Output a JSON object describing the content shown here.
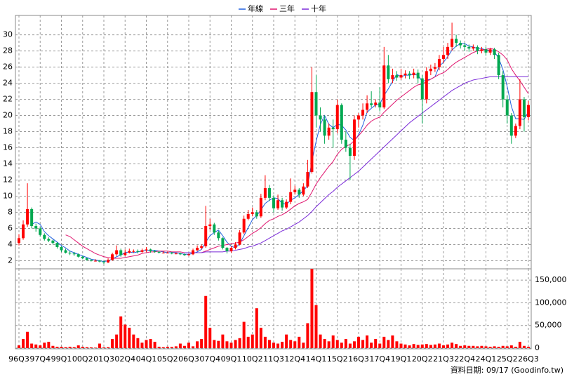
{
  "chart_data": {
    "type": "candlestick",
    "footnote": "資料日期: 09/17 (Goodinfo.tw)",
    "up_color": "#ff0000",
    "down_color": "#00a850",
    "grid": true,
    "categories": [
      "96Q3",
      null,
      null,
      null,
      null,
      "97Q4",
      null,
      null,
      null,
      null,
      "99Q1",
      null,
      null,
      null,
      null,
      "00Q2",
      null,
      null,
      null,
      null,
      "01Q3",
      null,
      null,
      null,
      null,
      "02Q4",
      null,
      null,
      null,
      null,
      "04Q1",
      null,
      null,
      null,
      null,
      "05Q2",
      null,
      null,
      null,
      null,
      "06Q3",
      null,
      null,
      null,
      null,
      "07Q4",
      null,
      null,
      null,
      null,
      "09Q1",
      null,
      null,
      null,
      null,
      "10Q2",
      null,
      null,
      null,
      null,
      "11Q3",
      null,
      null,
      null,
      null,
      "12Q4",
      null,
      null,
      null,
      null,
      "14Q1",
      null,
      null,
      null,
      null,
      "15Q2",
      null,
      null,
      null,
      null,
      "16Q3",
      null,
      null,
      null,
      null,
      "17Q4",
      null,
      null,
      null,
      null,
      "19Q1",
      null,
      null,
      null,
      null,
      "20Q2",
      null,
      null,
      null,
      null,
      "21Q3",
      null,
      null,
      null,
      null,
      "22Q4",
      null,
      null,
      null,
      null,
      "24Q1",
      null,
      null,
      null,
      null,
      "25Q2",
      null,
      null,
      null,
      null,
      "26Q3"
    ],
    "open": [
      4.2,
      4.8,
      6.5,
      8.4,
      6.3,
      6.0,
      5.2,
      4.7,
      4.5,
      4.2,
      3.7,
      3.3,
      3.0,
      2.9,
      2.8,
      2.5,
      2.3,
      2.1,
      2.0,
      2.0,
      1.9,
      1.8,
      2.1,
      2.8,
      3.3,
      2.7,
      3.0,
      3.2,
      3.2,
      3.1,
      3.3,
      3.4,
      3.2,
      3.1,
      3.0,
      3.0,
      3.0,
      2.9,
      2.9,
      2.8,
      2.7,
      2.8,
      3.3,
      3.6,
      3.8,
      6.3,
      6.5,
      5.5,
      4.8,
      3.6,
      3.2,
      3.6,
      4.0,
      5.5,
      7.2,
      7.8,
      8.0,
      7.5,
      9.8,
      11.0,
      9.8,
      8.5,
      9.5,
      8.6,
      9.3,
      10.5,
      10.8,
      10.2,
      11.2,
      13.0,
      22.9,
      20.0,
      19.5,
      17.5,
      18.5,
      18.3,
      21.3,
      17.0,
      16.0,
      15.0,
      19.5,
      20.0,
      20.7,
      21.5,
      21.3,
      21.6,
      21.0,
      26.2,
      24.5,
      25.0,
      24.7,
      25.0,
      25.2,
      25.0,
      25.3,
      24.6,
      22.0,
      25.5,
      25.8,
      26.0,
      27.0,
      27.5,
      28.5,
      29.5,
      29.0,
      28.7,
      28.5,
      28.3,
      28.5,
      28.0,
      28.2,
      27.8,
      28.2,
      27.5,
      25.0,
      22.0,
      20.0,
      17.5,
      18.7,
      22.0,
      19.8
    ],
    "high": [
      5.3,
      7,
      11.6,
      8.6,
      6.6,
      6.2,
      5.4,
      4.9,
      4.6,
      4.3,
      3.8,
      3.5,
      3.2,
      3.1,
      2.9,
      2.6,
      2.4,
      2.2,
      2.2,
      2.1,
      2.0,
      2.3,
      3.0,
      3.9,
      3.5,
      3.4,
      3.5,
      3.4,
      3.4,
      3.5,
      3.7,
      3.5,
      3.3,
      3.2,
      3.2,
      3.1,
      3.1,
      3.0,
      3.0,
      2.9,
      2.9,
      3.5,
      3.9,
      4.0,
      8.8,
      7.2,
      6.7,
      5.7,
      4.9,
      3.7,
      3.8,
      4.3,
      5.8,
      7.6,
      8.3,
      8.6,
      8.3,
      10.3,
      12.6,
      11.4,
      10.1,
      10.2,
      9.8,
      9.6,
      12.2,
      11.3,
      11.0,
      11.6,
      14.5,
      26.0,
      25.0,
      21.0,
      20.0,
      19.0,
      19.5,
      22.0,
      21.5,
      18.0,
      16.5,
      20.0,
      20.3,
      21.5,
      22.5,
      23.0,
      22.0,
      23.5,
      28.5,
      27.5,
      25.8,
      25.5,
      25.8,
      25.6,
      25.5,
      25.8,
      25.7,
      25.0,
      26.0,
      26.3,
      26.5,
      27.5,
      28.5,
      29.0,
      31.5,
      30.0,
      29.3,
      29.0,
      28.8,
      28.8,
      28.7,
      28.5,
      28.5,
      28.4,
      28.4,
      27.8,
      25.5,
      22.5,
      20.3,
      19.0,
      24.5,
      22.3,
      21.8
    ],
    "low": [
      3.9,
      4.6,
      6.2,
      6.0,
      5.6,
      5.0,
      4.5,
      4.3,
      4.0,
      3.5,
      3.1,
      2.9,
      2.7,
      2.6,
      2.4,
      2.2,
      2.0,
      1.9,
      1.9,
      1.8,
      1.6,
      1.7,
      2.0,
      2.6,
      2.5,
      2.6,
      2.9,
      3.0,
      2.9,
      3.0,
      3.1,
      3.0,
      3.0,
      2.9,
      2.9,
      2.9,
      2.8,
      2.8,
      2.7,
      2.6,
      2.6,
      2.7,
      3.2,
      3.4,
      3.6,
      5.8,
      5.2,
      4.5,
      3.4,
      2.9,
      3.0,
      3.4,
      3.9,
      5.3,
      7.0,
      7.5,
      7.2,
      7.3,
      9.5,
      9.4,
      8.0,
      8.3,
      8.2,
      8.4,
      9.0,
      10.2,
      9.8,
      10.0,
      11.0,
      12.8,
      18.5,
      18.0,
      16.5,
      17.0,
      16.0,
      17.8,
      16.5,
      15.5,
      12.0,
      14.5,
      18.5,
      19.5,
      20.3,
      21.0,
      21.0,
      20.5,
      20.8,
      24.0,
      24.0,
      24.3,
      24.4,
      24.6,
      24.5,
      24.6,
      24.0,
      19.0,
      21.5,
      25.0,
      25.4,
      25.6,
      26.5,
      27.0,
      28.0,
      28.5,
      28.3,
      28.0,
      27.9,
      28.0,
      27.6,
      27.7,
      27.4,
      27.5,
      27.0,
      24.5,
      21.0,
      19.0,
      16.5,
      17.2,
      18.3,
      18.0,
      19.4
    ],
    "close": [
      4.8,
      6.5,
      8.4,
      6.3,
      6.0,
      5.2,
      4.7,
      4.5,
      4.2,
      3.7,
      3.3,
      3.0,
      2.9,
      2.8,
      2.5,
      2.3,
      2.1,
      2.0,
      2.0,
      1.9,
      1.8,
      2.1,
      2.8,
      3.3,
      2.7,
      3.0,
      3.2,
      3.2,
      3.1,
      3.3,
      3.4,
      3.2,
      3.1,
      3.0,
      3.0,
      3.0,
      2.9,
      2.9,
      2.8,
      2.7,
      2.8,
      3.3,
      3.6,
      3.8,
      6.3,
      6.5,
      5.5,
      4.8,
      3.6,
      3.2,
      3.6,
      4.0,
      5.5,
      7.2,
      7.8,
      8.0,
      7.5,
      9.8,
      11.0,
      9.8,
      8.5,
      9.5,
      8.6,
      9.3,
      10.5,
      10.8,
      10.2,
      11.2,
      13.0,
      22.9,
      20.0,
      19.5,
      17.5,
      18.5,
      18.3,
      21.3,
      17.0,
      16.0,
      15.0,
      19.5,
      20.0,
      20.7,
      21.5,
      21.3,
      21.6,
      21.0,
      26.2,
      24.5,
      25.0,
      24.7,
      25.0,
      25.2,
      25.0,
      25.3,
      24.6,
      22.0,
      25.5,
      25.8,
      26.0,
      27.0,
      27.5,
      28.5,
      29.5,
      29.0,
      28.7,
      28.5,
      28.3,
      28.5,
      28.0,
      28.2,
      27.8,
      28.2,
      27.5,
      25.0,
      22.0,
      20.0,
      17.5,
      18.7,
      22.0,
      19.8,
      21.3
    ],
    "ylim": [
      1,
      32.4
    ],
    "yticks": [
      2,
      4,
      6,
      8,
      10,
      12,
      14,
      16,
      18,
      20,
      22,
      24,
      26,
      28,
      30
    ],
    "series": [
      {
        "name": "年線",
        "color": "#1f5fe0",
        "values": [
          null,
          null,
          null,
          6.5,
          6.8,
          6.5,
          5.6,
          5.1,
          4.7,
          4.3,
          3.9,
          3.6,
          3.2,
          3.0,
          2.8,
          2.6,
          2.4,
          2.2,
          2.1,
          2.0,
          1.9,
          2.0,
          2.2,
          2.5,
          2.7,
          3.0,
          3.1,
          3.0,
          3.1,
          3.2,
          3.3,
          3.3,
          3.3,
          3.2,
          3.1,
          3.0,
          3.0,
          3.0,
          2.9,
          2.8,
          2.8,
          2.9,
          3.1,
          3.4,
          4.3,
          5.1,
          5.5,
          5.8,
          5.1,
          4.3,
          3.8,
          3.6,
          4.1,
          5.1,
          6.1,
          7.1,
          7.6,
          8.3,
          9.1,
          9.5,
          9.8,
          9.7,
          9.1,
          9.0,
          9.5,
          9.8,
          10.2,
          10.7,
          11.3,
          14.3,
          16.8,
          18.9,
          20.0,
          18.9,
          18.5,
          18.9,
          18.8,
          18.2,
          17.3,
          16.9,
          17.6,
          18.8,
          20.4,
          20.9,
          21.3,
          21.4,
          22.5,
          23.3,
          24.2,
          25.1,
          24.8,
          25.0,
          25.0,
          25.1,
          25.0,
          24.2,
          24.4,
          24.5,
          24.8,
          26.1,
          26.6,
          27.3,
          28.1,
          28.6,
          28.9,
          28.9,
          28.6,
          28.5,
          28.3,
          28.3,
          28.1,
          28.1,
          27.9,
          27.1,
          25.7,
          23.6,
          21.1,
          19.6,
          19.6,
          19.5,
          20.5
        ]
      },
      {
        "name": "三年",
        "color": "#e0146e",
        "values": [
          null,
          null,
          null,
          null,
          null,
          null,
          null,
          null,
          null,
          null,
          null,
          5.2,
          5.0,
          4.6,
          4.2,
          3.8,
          3.5,
          3.2,
          2.9,
          2.7,
          2.5,
          2.4,
          2.3,
          2.3,
          2.3,
          2.4,
          2.5,
          2.6,
          2.7,
          2.9,
          3.0,
          3.1,
          3.1,
          3.2,
          3.2,
          3.2,
          3.1,
          3.1,
          3.1,
          3.0,
          3.0,
          3.0,
          3.0,
          3.0,
          3.2,
          3.4,
          3.6,
          3.8,
          3.9,
          4.0,
          4.1,
          4.2,
          4.3,
          4.6,
          5.0,
          5.4,
          5.7,
          6.1,
          6.6,
          7.0,
          7.2,
          7.5,
          7.7,
          8.0,
          8.4,
          8.8,
          9.1,
          9.3,
          9.6,
          10.5,
          11.5,
          12.3,
          13.0,
          13.7,
          14.3,
          15.2,
          15.8,
          16.2,
          16.4,
          16.9,
          17.5,
          18.1,
          18.8,
          19.3,
          19.6,
          19.8,
          20.4,
          20.9,
          21.4,
          21.9,
          22.3,
          22.7,
          23.1,
          23.5,
          23.8,
          23.9,
          24.2,
          24.5,
          24.8,
          25.1,
          25.3,
          25.7,
          26.2,
          26.6,
          26.9,
          27.2,
          27.5,
          27.8,
          28.0,
          28.1,
          28.2,
          28.3,
          28.2,
          27.9,
          27.5,
          26.9,
          25.8,
          25.0,
          24.3,
          23.5,
          22.7
        ]
      },
      {
        "name": "十年",
        "color": "#7a2ad8",
        "values": [
          null,
          null,
          null,
          null,
          null,
          null,
          null,
          null,
          null,
          null,
          null,
          null,
          null,
          null,
          null,
          null,
          null,
          null,
          null,
          null,
          null,
          null,
          null,
          null,
          null,
          null,
          null,
          null,
          null,
          null,
          null,
          null,
          null,
          null,
          null,
          null,
          null,
          null,
          null,
          3.0,
          3.0,
          3.0,
          3.0,
          3.0,
          3.1,
          3.1,
          3.1,
          3.1,
          3.1,
          3.2,
          3.2,
          3.3,
          3.4,
          3.5,
          3.7,
          3.8,
          4.0,
          4.2,
          4.5,
          4.8,
          5.1,
          5.4,
          5.7,
          5.9,
          6.2,
          6.5,
          6.8,
          7.2,
          7.6,
          8.1,
          8.7,
          9.2,
          9.7,
          10.2,
          10.6,
          11.1,
          11.5,
          11.9,
          12.3,
          12.7,
          13.1,
          13.6,
          14.1,
          14.6,
          15.1,
          15.6,
          16.1,
          16.6,
          17.1,
          17.6,
          18.1,
          18.6,
          19.1,
          19.5,
          19.9,
          20.3,
          20.7,
          21.1,
          21.5,
          21.9,
          22.3,
          22.7,
          23.1,
          23.4,
          23.7,
          24.0,
          24.2,
          24.4,
          24.5,
          24.6,
          24.7,
          24.8,
          24.8,
          24.8,
          24.8,
          24.8,
          24.8,
          24.8,
          24.8,
          24.8,
          24.8
        ]
      }
    ],
    "volume": {
      "color": "#ff0000",
      "values": [
        6000,
        20000,
        36000,
        10000,
        8000,
        6000,
        12000,
        14000,
        5000,
        3000,
        3000,
        2000,
        3000,
        2000,
        6000,
        3000,
        2000,
        1500,
        1000,
        10000,
        1500,
        2000,
        20000,
        30000,
        70000,
        52000,
        45000,
        30000,
        22000,
        12000,
        18000,
        20000,
        14000,
        3000,
        2000,
        3000,
        2500,
        4000,
        10000,
        5000,
        12000,
        4000,
        15000,
        20000,
        115000,
        45000,
        18000,
        16000,
        30000,
        15000,
        12000,
        18000,
        22000,
        58000,
        25000,
        30000,
        88000,
        45000,
        25000,
        18000,
        12000,
        10000,
        14000,
        30000,
        18000,
        15000,
        25000,
        12000,
        55000,
        175000,
        95000,
        30000,
        20000,
        15000,
        28000,
        18000,
        12000,
        20000,
        10000,
        15000,
        25000,
        18000,
        28000,
        12000,
        20000,
        10000,
        25000,
        18000,
        28000,
        15000,
        10000,
        8000,
        6000,
        9000,
        7000,
        8000,
        9000,
        7000,
        8000,
        10000,
        6000,
        8000,
        12000,
        9000,
        5000,
        6000,
        5000,
        5000,
        4000,
        5000,
        4000,
        3000,
        4000,
        3000,
        5000,
        4000,
        6000,
        3000,
        14000,
        5000,
        3000
      ],
      "ylim": [
        0,
        175000
      ],
      "yticks": [
        0,
        {
          "value": 50000,
          "label": "50,000"
        },
        {
          "value": 100000,
          "label": "100,000"
        },
        {
          "value": 150000,
          "label": "150,000"
        }
      ]
    }
  }
}
